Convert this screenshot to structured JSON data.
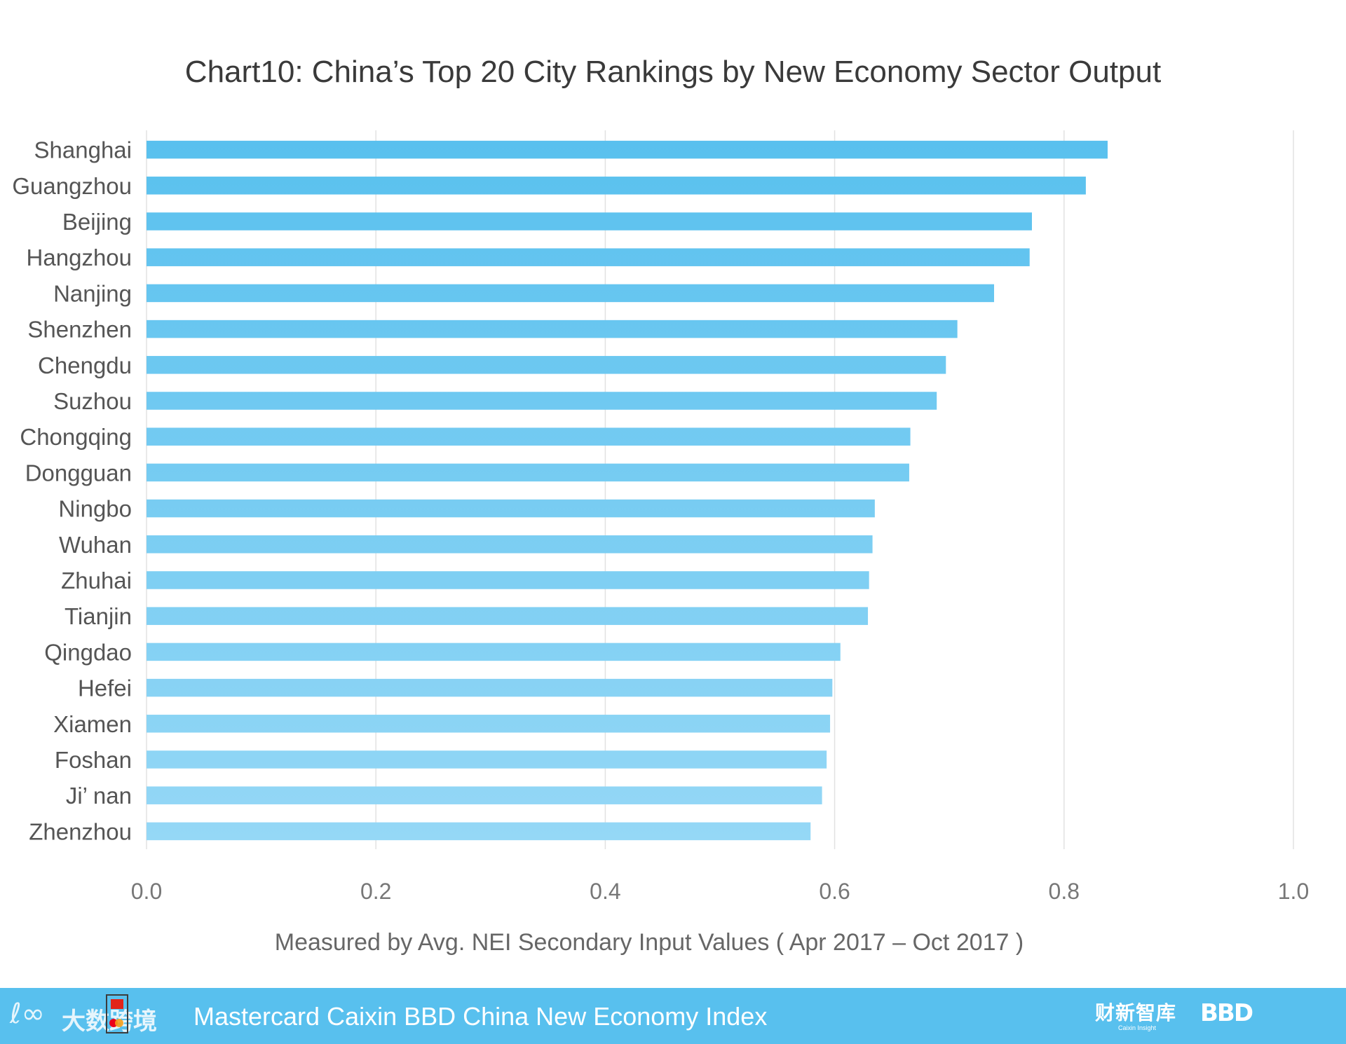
{
  "chart_data": {
    "type": "bar",
    "orientation": "horizontal",
    "title": "Chart10: China’s Top 20 City Rankings by New Economy Sector Output",
    "xlabel": "Measured by Avg. NEI Secondary Input Values ( Apr 2017 – Oct 2017 )",
    "ylabel": "",
    "xlim": [
      0,
      1.0
    ],
    "x_ticks": [
      "0.0",
      "0.2",
      "0.4",
      "0.6",
      "0.8",
      "1.0"
    ],
    "grid": "vertical",
    "legend": "none",
    "bar_color_top": "#58c0ee",
    "bar_color_bottom": "#96d8f6",
    "categories": [
      "Shanghai",
      "Guangzhou",
      "Beijing",
      "Hangzhou",
      "Nanjing",
      "Shenzhen",
      "Chengdu",
      "Suzhou",
      "Chongqing",
      "Dongguan",
      "Ningbo",
      "Wuhan",
      "Zhuhai",
      "Tianjin",
      "Qingdao",
      "Hefei",
      "Xiamen",
      "Foshan",
      "Ji’ nan",
      "Zhenzhou"
    ],
    "values": [
      0.838,
      0.819,
      0.772,
      0.77,
      0.739,
      0.707,
      0.697,
      0.689,
      0.666,
      0.665,
      0.635,
      0.633,
      0.63,
      0.629,
      0.605,
      0.598,
      0.596,
      0.593,
      0.589,
      0.579
    ]
  },
  "footer": {
    "text": "Mastercard Caixin BBD China New Economy Index",
    "logo_left_text": "大数跨境",
    "logo_caixin_text": "财新智库",
    "logo_caixin_sub": "Caixin Insight",
    "logo_bbd_text": "BBD"
  }
}
